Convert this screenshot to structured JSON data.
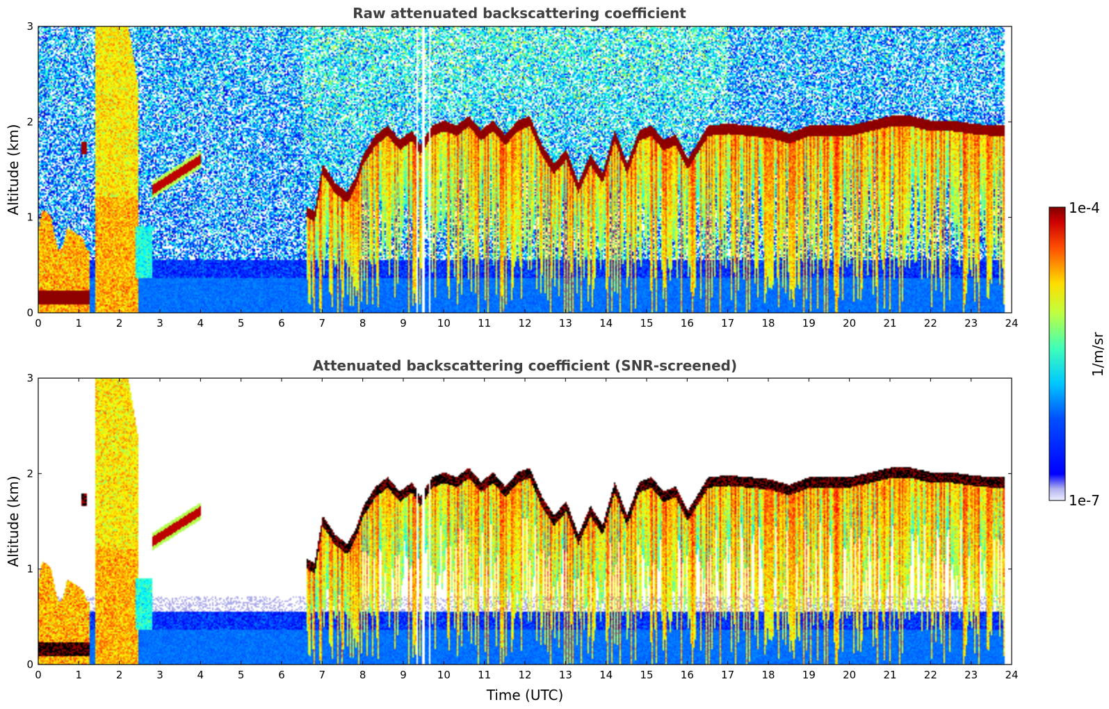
{
  "chart_data": [
    {
      "type": "heatmap",
      "title": "Raw attenuated backscattering coefficient",
      "xlabel": "",
      "ylabel": "Altitude (km)",
      "xlim": [
        0,
        24
      ],
      "ylim": [
        0,
        3
      ],
      "xticks": [
        "0",
        "1",
        "2",
        "3",
        "4",
        "5",
        "6",
        "7",
        "8",
        "9",
        "10",
        "11",
        "12",
        "13",
        "14",
        "15",
        "16",
        "17",
        "18",
        "19",
        "20",
        "21",
        "22",
        "23",
        "24"
      ],
      "yticks": [
        "0",
        "1",
        "2",
        "3"
      ],
      "screened": false
    },
    {
      "type": "heatmap",
      "title": "Attenuated backscattering coefficient (SNR-screened)",
      "xlabel": "Time (UTC)",
      "ylabel": "Altitude (km)",
      "xlim": [
        0,
        24
      ],
      "ylim": [
        0,
        3
      ],
      "xticks": [
        "0",
        "1",
        "2",
        "3",
        "4",
        "5",
        "6",
        "7",
        "8",
        "9",
        "10",
        "11",
        "12",
        "13",
        "14",
        "15",
        "16",
        "17",
        "18",
        "19",
        "20",
        "21",
        "22",
        "23",
        "24"
      ],
      "yticks": [
        "0",
        "1",
        "2",
        "3"
      ],
      "screened": true
    }
  ],
  "colorbar": {
    "label": "1/m/sr",
    "max_label": "1e-4",
    "min_label": "1e-7",
    "colormap": "jet",
    "log_min": -7,
    "log_max": -4
  },
  "cloud_top_profile": {
    "time": [
      6.6,
      6.8,
      7.0,
      7.3,
      7.6,
      7.8,
      8.0,
      8.3,
      8.6,
      8.9,
      9.2,
      9.4,
      9.7,
      10.0,
      10.3,
      10.6,
      10.9,
      11.2,
      11.5,
      11.8,
      12.1,
      12.4,
      12.7,
      13.0,
      13.3,
      13.6,
      13.9,
      14.2,
      14.5,
      14.8,
      15.1,
      15.4,
      15.7,
      16.0,
      16.5,
      17.0,
      17.5,
      18.0,
      18.5,
      19.0,
      19.5,
      20.0,
      20.5,
      21.0,
      21.5,
      22.0,
      22.5,
      23.0,
      23.5,
      23.8
    ],
    "altitude_km": [
      1.05,
      1.0,
      1.5,
      1.3,
      1.2,
      1.35,
      1.6,
      1.8,
      1.9,
      1.75,
      1.85,
      1.7,
      1.9,
      1.95,
      1.9,
      2.0,
      1.85,
      1.95,
      1.8,
      1.95,
      2.0,
      1.7,
      1.5,
      1.65,
      1.3,
      1.6,
      1.4,
      1.85,
      1.5,
      1.85,
      1.9,
      1.75,
      1.8,
      1.55,
      1.9,
      1.92,
      1.9,
      1.88,
      1.82,
      1.9,
      1.9,
      1.9,
      1.95,
      2.0,
      2.0,
      1.95,
      1.95,
      1.92,
      1.9,
      1.9
    ]
  }
}
